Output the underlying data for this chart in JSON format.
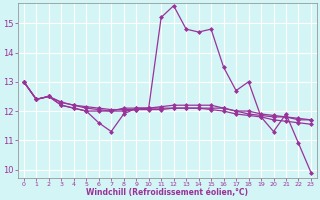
{
  "xlabel": "Windchill (Refroidissement éolien,°C)",
  "background_color": "#d4f5f5",
  "grid_color": "#ffffff",
  "line_color": "#993399",
  "x_ticks": [
    0,
    1,
    2,
    3,
    4,
    5,
    6,
    7,
    8,
    9,
    10,
    11,
    12,
    13,
    14,
    15,
    16,
    17,
    18,
    19,
    20,
    21,
    22,
    23
  ],
  "x_tick_labels": [
    "0",
    "1",
    "2",
    "3",
    "4",
    "5",
    "6",
    "7",
    "8",
    "9",
    "10",
    "11",
    "12",
    "13",
    "14",
    "15",
    "16",
    "17",
    "18",
    "19",
    "20",
    "21",
    "22",
    "23"
  ],
  "y_ticks": [
    10,
    11,
    12,
    13,
    14,
    15
  ],
  "xlim": [
    -0.5,
    23.5
  ],
  "ylim": [
    9.7,
    15.7
  ],
  "series": [
    [
      13.0,
      12.4,
      12.5,
      12.2,
      12.1,
      12.0,
      11.6,
      11.3,
      11.9,
      12.1,
      12.1,
      15.2,
      15.6,
      14.8,
      14.7,
      14.8,
      13.5,
      12.7,
      13.0,
      11.8,
      11.3,
      11.9,
      10.9,
      9.9
    ],
    [
      13.0,
      12.4,
      12.5,
      12.2,
      12.1,
      12.0,
      12.0,
      12.0,
      12.1,
      12.1,
      12.1,
      12.1,
      12.1,
      12.1,
      12.1,
      12.1,
      12.1,
      12.0,
      11.9,
      11.85,
      11.8,
      11.8,
      11.7,
      11.7
    ],
    [
      13.0,
      12.4,
      12.5,
      12.3,
      12.2,
      12.1,
      12.05,
      12.0,
      12.0,
      12.05,
      12.1,
      12.15,
      12.2,
      12.2,
      12.2,
      12.2,
      12.1,
      12.0,
      12.0,
      11.9,
      11.85,
      11.8,
      11.75,
      11.7
    ],
    [
      13.0,
      12.4,
      12.5,
      12.3,
      12.2,
      12.15,
      12.1,
      12.05,
      12.05,
      12.05,
      12.05,
      12.05,
      12.1,
      12.1,
      12.1,
      12.05,
      12.0,
      11.9,
      11.85,
      11.8,
      11.7,
      11.65,
      11.6,
      11.55
    ]
  ]
}
